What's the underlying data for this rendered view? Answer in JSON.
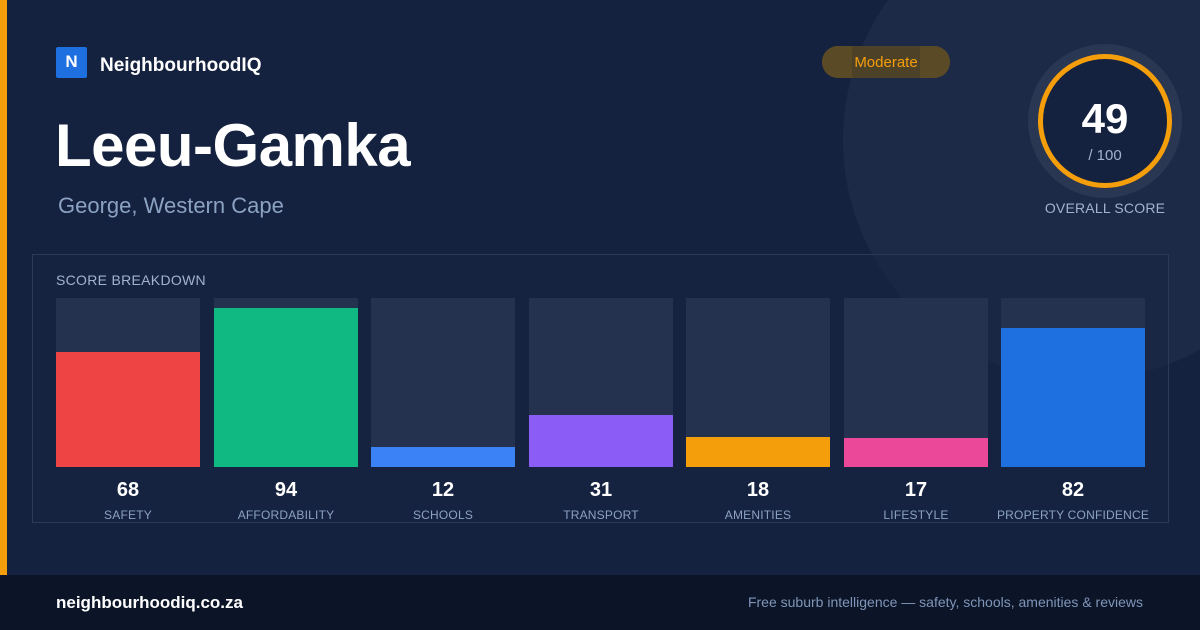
{
  "brand": {
    "logo_letter": "N",
    "name": "NeighbourhoodIQ"
  },
  "suburb": {
    "name": "Leeu-Gamka",
    "location": "George, Western Cape"
  },
  "rating_badge": {
    "label": "Moderate",
    "color": "#f59e0b"
  },
  "overall": {
    "score": "49",
    "max": "/ 100",
    "caption": "OVERALL SCORE",
    "score_value": 49,
    "ring_color": "#f59e0b"
  },
  "breakdown": {
    "title": "SCORE BREAKDOWN",
    "items": [
      {
        "label": "SAFETY",
        "value": "68",
        "score": 68,
        "color": "#ef4444"
      },
      {
        "label": "AFFORDABILITY",
        "value": "94",
        "score": 94,
        "color": "#10b981"
      },
      {
        "label": "SCHOOLS",
        "value": "12",
        "score": 12,
        "color": "#3b82f6"
      },
      {
        "label": "TRANSPORT",
        "value": "31",
        "score": 31,
        "color": "#8b5cf6"
      },
      {
        "label": "AMENITIES",
        "value": "18",
        "score": 18,
        "color": "#f59e0b"
      },
      {
        "label": "LIFESTYLE",
        "value": "17",
        "score": 17,
        "color": "#ec4899"
      },
      {
        "label": "PROPERTY CONFIDENCE",
        "value": "82",
        "score": 82,
        "color": "#1e6fe0"
      }
    ]
  },
  "footer": {
    "url": "neighbourhoodiq.co.za",
    "tagline": "Free suburb intelligence — safety, schools, amenities & reviews"
  }
}
